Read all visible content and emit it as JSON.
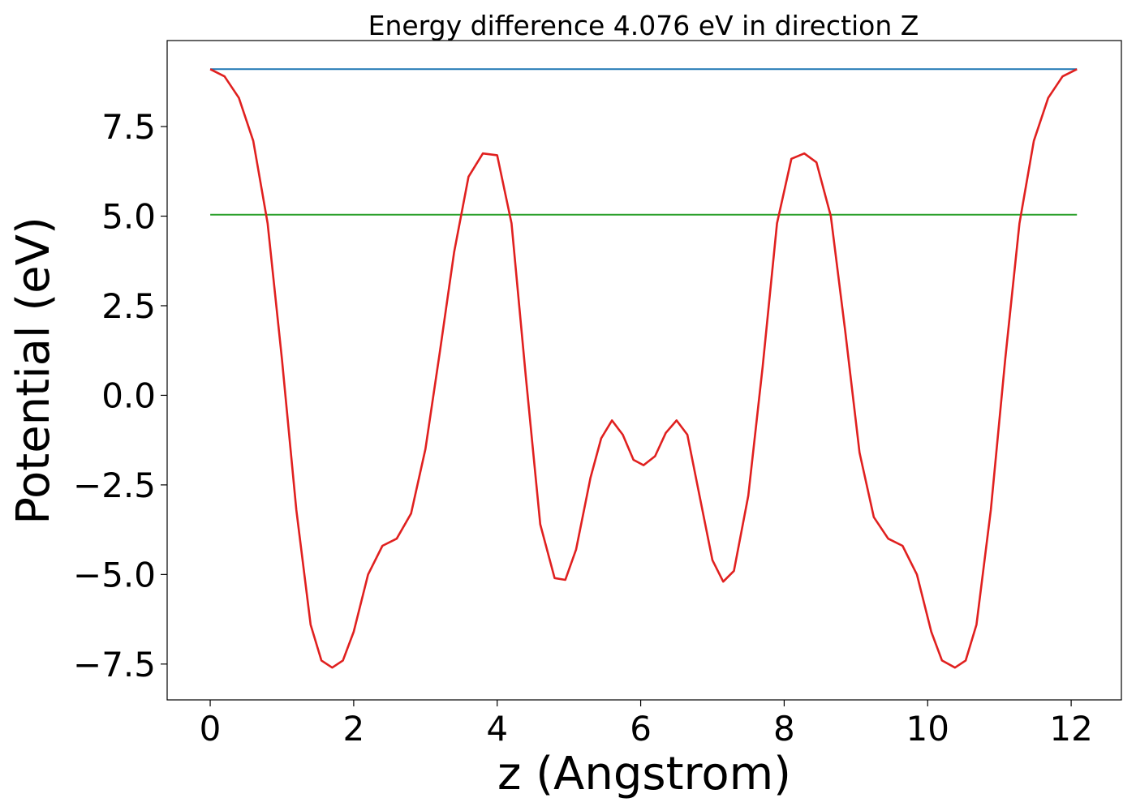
{
  "chart_data": {
    "type": "line",
    "title": "Energy difference 4.076 eV in direction Z",
    "xlabel": "z (Angstrom)",
    "ylabel": "Potential (eV)",
    "xlim": [
      -0.6,
      12.7
    ],
    "ylim": [
      -8.5,
      9.9
    ],
    "xticks": [
      0,
      2,
      4,
      6,
      8,
      10,
      12
    ],
    "xtick_labels": [
      "0",
      "2",
      "4",
      "6",
      "8",
      "10",
      "12"
    ],
    "yticks": [
      7.5,
      5.0,
      2.5,
      0.0,
      -2.5,
      -5.0,
      -7.5
    ],
    "ytick_labels": [
      "7.5",
      "5.0",
      "2.5",
      "0.0",
      "−2.5",
      "−5.0",
      "−7.5"
    ],
    "grid": false,
    "legend": "none",
    "series": [
      {
        "color": "#1f77b4",
        "x": [
          0,
          12.08
        ],
        "y": [
          9.1,
          9.1
        ]
      },
      {
        "color": "#2ca02c",
        "x": [
          0,
          12.08
        ],
        "y": [
          5.04,
          5.04
        ]
      },
      {
        "color": "#e0201f",
        "x": [
          0,
          0.2,
          0.4,
          0.6,
          0.8,
          1.0,
          1.2,
          1.4,
          1.55,
          1.7,
          1.85,
          2.0,
          2.2,
          2.4,
          2.6,
          2.8,
          3.0,
          3.2,
          3.4,
          3.6,
          3.8,
          4.0,
          4.2,
          4.4,
          4.6,
          4.8,
          4.95,
          5.1,
          5.3,
          5.45,
          5.6,
          5.75,
          5.9,
          6.04,
          6.2,
          6.35,
          6.5,
          6.65,
          6.8,
          7.0,
          7.15,
          7.3,
          7.5,
          7.7,
          7.9,
          8.1,
          8.28,
          8.45,
          8.65,
          8.85,
          9.05,
          9.25,
          9.45,
          9.65,
          9.85,
          10.05,
          10.2,
          10.38,
          10.53,
          10.68,
          10.88,
          11.08,
          11.28,
          11.48,
          11.68,
          11.88,
          12.08
        ],
        "y": [
          9.1,
          8.9,
          8.3,
          7.1,
          4.8,
          1.0,
          -3.2,
          -6.4,
          -7.4,
          -7.6,
          -7.4,
          -6.6,
          -5.0,
          -4.2,
          -4.0,
          -3.3,
          -1.5,
          1.2,
          4.0,
          6.1,
          6.75,
          6.7,
          4.8,
          0.5,
          -3.6,
          -5.1,
          -5.15,
          -4.3,
          -2.3,
          -1.2,
          -0.7,
          -1.1,
          -1.8,
          -1.95,
          -1.7,
          -1.05,
          -0.7,
          -1.1,
          -2.6,
          -4.6,
          -5.2,
          -4.9,
          -2.8,
          0.8,
          4.8,
          6.6,
          6.75,
          6.5,
          5.0,
          1.8,
          -1.6,
          -3.4,
          -4.0,
          -4.2,
          -5.0,
          -6.6,
          -7.4,
          -7.6,
          -7.4,
          -6.4,
          -3.2,
          1.0,
          4.8,
          7.1,
          8.3,
          8.9,
          9.1
        ]
      }
    ]
  }
}
